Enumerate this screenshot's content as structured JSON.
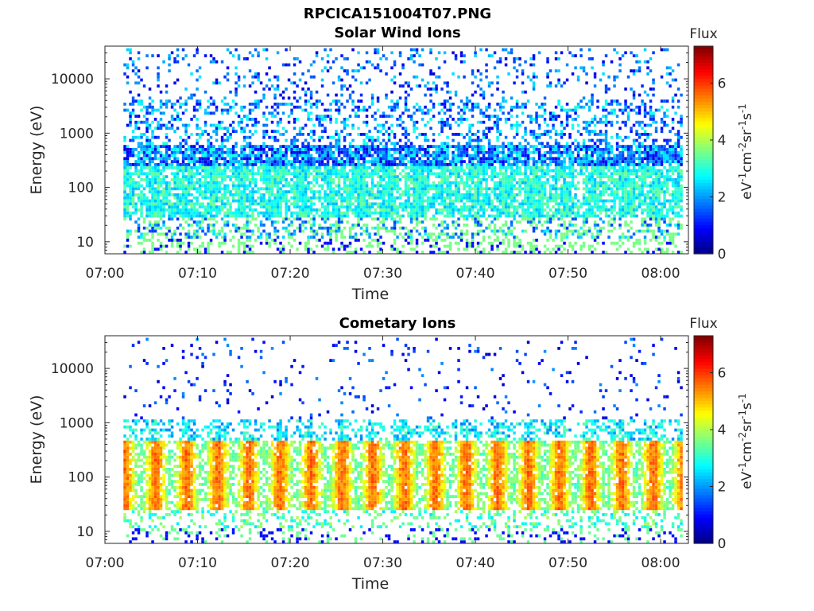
{
  "figure": {
    "title": "RPCICA151004T07.PNG"
  },
  "chart_data": [
    {
      "type": "heatmap",
      "title": "Solar Wind Ions",
      "xlabel": "Time",
      "ylabel": "Energy (eV)",
      "x_ticks": [
        "07:00",
        "07:10",
        "07:20",
        "07:30",
        "07:40",
        "07:50",
        "08:00"
      ],
      "y_ticks": [
        "10",
        "100",
        "1000",
        "10000"
      ],
      "y_scale": "log",
      "xlim": [
        "07:00",
        "08:03"
      ],
      "ylim": [
        6,
        40000
      ],
      "data_start": "07:02",
      "colorbar": {
        "title": "Flux",
        "label": "eV-1cm-2sr-1s-1",
        "ticks": [
          "0",
          "2",
          "4",
          "6"
        ],
        "range": [
          0,
          7.3
        ],
        "colormap": "jet"
      },
      "description_of_values": {
        "main_band_energy_range_eV": [
          40,
          500
        ],
        "main_band_flux": [
          2.5,
          3.5
        ],
        "dense_boundary_energy_eV": 400,
        "high_energy_sparse_flux": [
          0.5,
          2.5
        ],
        "low_energy_flux": 3.5
      }
    },
    {
      "type": "heatmap",
      "title": "Cometary Ions",
      "xlabel": "Time",
      "ylabel": "Energy (eV)",
      "x_ticks": [
        "07:00",
        "07:10",
        "07:20",
        "07:30",
        "07:40",
        "07:50",
        "08:00"
      ],
      "y_ticks": [
        "10",
        "100",
        "1000",
        "10000"
      ],
      "y_scale": "log",
      "xlim": [
        "07:00",
        "08:03"
      ],
      "ylim": [
        6,
        40000
      ],
      "data_start": "07:02",
      "colorbar": {
        "title": "Flux",
        "label": "eV-1cm-2sr-1s-1",
        "ticks": [
          "0",
          "2",
          "4",
          "6"
        ],
        "range": [
          0,
          7.3
        ],
        "colormap": "jet"
      },
      "description_of_values": {
        "main_band_energy_range_eV": [
          20,
          600
        ],
        "main_band_peak_flux": [
          4.5,
          5.5
        ],
        "periodic_bursts_count": 18,
        "high_energy_sparse_flux": [
          0.5,
          2.0
        ]
      }
    }
  ]
}
